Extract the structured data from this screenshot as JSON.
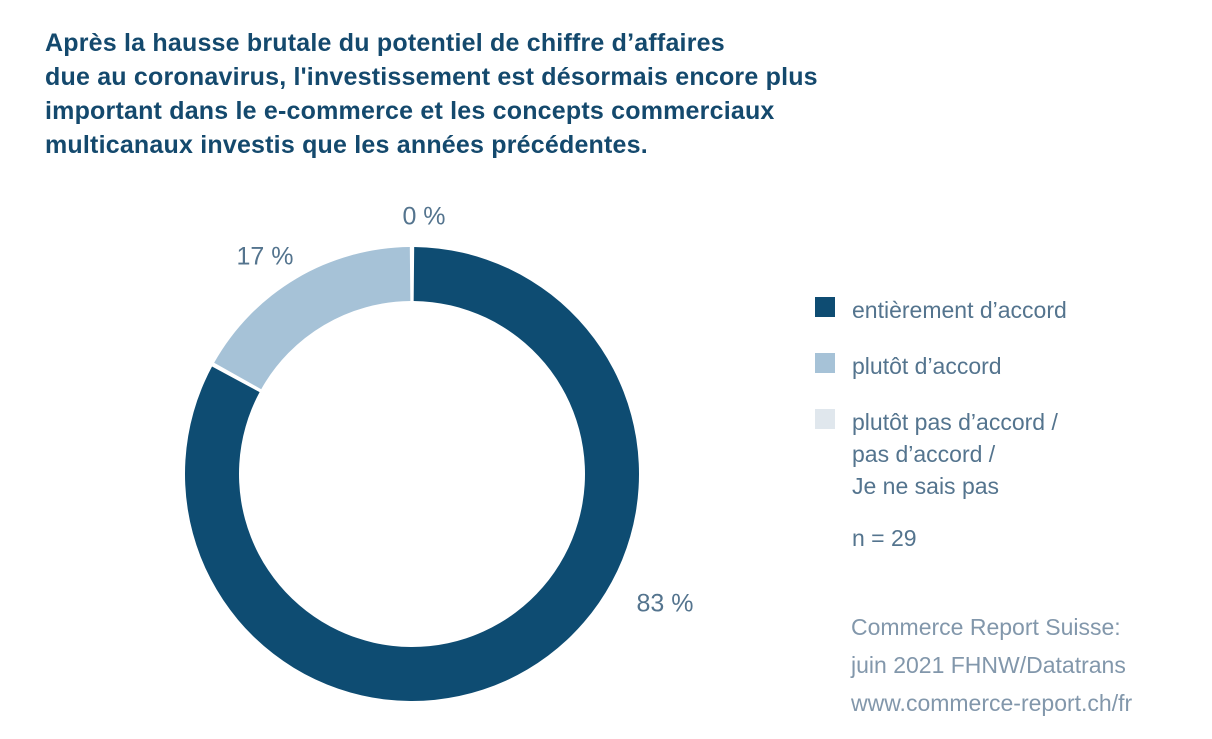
{
  "title": "Après la hausse brutale du potentiel de chiffre d’affaires\ndue au coronavirus, l'investissement est désormais encore plus\nimportant dans le e-commerce et les concepts commerciaux\nmulticanaux investis que les années précédentes.",
  "chart_data": {
    "type": "pie",
    "subtype": "donut",
    "categories": [
      "entièrement d’accord",
      "plutôt d’accord",
      "plutôt pas d’accord / pas d’accord / Je ne sais pas"
    ],
    "values": [
      83,
      17,
      0
    ],
    "unit": "%",
    "slice_labels": [
      "83 %",
      "17 %",
      "0 %"
    ],
    "colors": [
      "#0e4c72",
      "#a6c2d7",
      "#e0e7ed"
    ],
    "start_angle_deg": 0,
    "direction": "clockwise",
    "inner_radius_ratio": 0.76,
    "legend_position": "right",
    "sample_size": "n = 29"
  },
  "legend": {
    "items": [
      {
        "label": "entièrement d’accord",
        "color": "#0e4c72"
      },
      {
        "label": "plutôt d’accord",
        "color": "#a6c2d7"
      },
      {
        "label": "plutôt pas d’accord /\npas d’accord /\nJe ne sais pas",
        "color": "#e0e7ed"
      }
    ]
  },
  "sample_size": "n = 29",
  "source": "Commerce Report Suisse:\njuin 2021 FHNW/Datatrans\nwww.commerce-report.ch/fr",
  "ui_colors": {
    "title_text": "#14496d",
    "label_text": "#54748e",
    "source_text": "#8297ab",
    "background": "#ffffff"
  }
}
